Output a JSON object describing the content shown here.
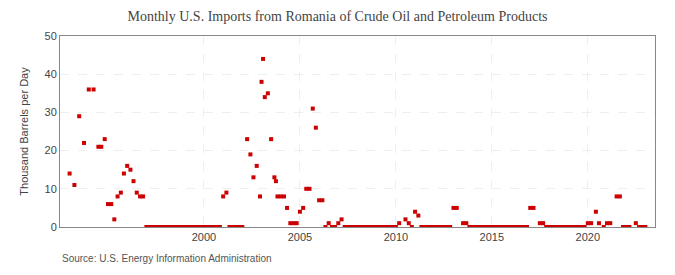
{
  "chart_data": {
    "type": "scatter",
    "title": "Monthly U.S. Imports from Romania of Crude Oil and Petroleum Products",
    "y_label": "Thousand Barrels per Day",
    "annotations": [
      "Source: U.S. Energy Information Administration"
    ],
    "color": "#cc0000",
    "marker": "square",
    "grid": true,
    "xlim": [
      1992.5,
      2023.5
    ],
    "xticks": [
      2000,
      2005,
      2010,
      2015,
      2020
    ],
    "ylim": [
      0,
      50
    ],
    "yticks": [
      0,
      10,
      20,
      30,
      40,
      50
    ],
    "x": [
      1993.0,
      1993.25,
      1993.5,
      1993.75,
      1994.0,
      1994.25,
      1994.5,
      1994.65,
      1994.83,
      1995.0,
      1995.17,
      1995.33,
      1995.5,
      1995.67,
      1995.83,
      1996.0,
      1996.17,
      1996.33,
      1996.5,
      1996.67,
      1996.83,
      1997.0,
      1997.17,
      1997.33,
      1997.5,
      1997.67,
      1997.83,
      1998.0,
      1998.17,
      1998.33,
      1998.5,
      1998.67,
      1998.83,
      1999.0,
      1999.17,
      1999.33,
      1999.5,
      1999.67,
      1999.83,
      2000.0,
      2000.17,
      2000.33,
      2000.5,
      2000.67,
      2000.83,
      2001.0,
      2001.17,
      2001.33,
      2001.5,
      2001.67,
      2001.83,
      2002.0,
      2002.25,
      2002.42,
      2002.58,
      2002.75,
      2002.92,
      2003.0,
      2003.08,
      2003.17,
      2003.33,
      2003.5,
      2003.67,
      2003.75,
      2003.83,
      2004.0,
      2004.17,
      2004.33,
      2004.5,
      2004.67,
      2004.83,
      2005.0,
      2005.17,
      2005.33,
      2005.5,
      2005.67,
      2005.83,
      2006.0,
      2006.17,
      2006.33,
      2006.5,
      2006.67,
      2006.83,
      2007.0,
      2007.17,
      2007.33,
      2007.5,
      2007.67,
      2007.83,
      2008.0,
      2008.17,
      2008.33,
      2008.5,
      2008.67,
      2008.83,
      2009.0,
      2009.17,
      2009.33,
      2009.5,
      2009.67,
      2009.83,
      2010.0,
      2010.17,
      2010.5,
      2010.67,
      2010.83,
      2011.0,
      2011.17,
      2011.33,
      2011.5,
      2011.67,
      2011.83,
      2012.0,
      2012.17,
      2012.33,
      2012.5,
      2012.67,
      2012.83,
      2013.0,
      2013.17,
      2013.5,
      2013.67,
      2013.83,
      2014.0,
      2014.17,
      2014.33,
      2014.5,
      2014.67,
      2014.83,
      2015.0,
      2015.17,
      2015.33,
      2015.5,
      2015.67,
      2015.83,
      2016.0,
      2016.17,
      2016.33,
      2016.5,
      2016.67,
      2016.83,
      2017.0,
      2017.17,
      2017.5,
      2017.67,
      2017.83,
      2018.0,
      2018.17,
      2018.33,
      2018.5,
      2018.67,
      2018.83,
      2019.0,
      2019.17,
      2019.33,
      2019.5,
      2019.67,
      2019.83,
      2020.0,
      2020.17,
      2020.42,
      2020.58,
      2020.83,
      2021.0,
      2021.17,
      2021.5,
      2021.67,
      2021.83,
      2022.0,
      2022.17,
      2022.5,
      2022.67,
      2022.83,
      2023.0
    ],
    "values": [
      14,
      11,
      29,
      22,
      36,
      36,
      21,
      21,
      23,
      6,
      6,
      2,
      8,
      9,
      14,
      16,
      15,
      12,
      9,
      8,
      8,
      0,
      0,
      0,
      0,
      0,
      0,
      0,
      0,
      0,
      0,
      0,
      0,
      0,
      0,
      0,
      0,
      0,
      0,
      0,
      0,
      0,
      0,
      0,
      0,
      8,
      9,
      0,
      0,
      0,
      0,
      0,
      23,
      19,
      13,
      16,
      8,
      38,
      44,
      34,
      35,
      23,
      13,
      12,
      8,
      8,
      8,
      5,
      1,
      1,
      1,
      4,
      5,
      10,
      10,
      31,
      26,
      7,
      7,
      0,
      1,
      0,
      0,
      1,
      2,
      0,
      0,
      0,
      0,
      0,
      0,
      0,
      0,
      0,
      0,
      0,
      0,
      0,
      0,
      0,
      0,
      0,
      1,
      2,
      1,
      0,
      4,
      3,
      0,
      0,
      0,
      0,
      0,
      0,
      0,
      0,
      0,
      0,
      5,
      5,
      1,
      1,
      0,
      0,
      0,
      0,
      0,
      0,
      0,
      0,
      0,
      0,
      0,
      0,
      0,
      0,
      0,
      0,
      0,
      0,
      0,
      5,
      5,
      1,
      1,
      0,
      0,
      0,
      0,
      0,
      0,
      0,
      0,
      0,
      0,
      0,
      0,
      0,
      1,
      1,
      4,
      1,
      0,
      1,
      1,
      8,
      8,
      0,
      0,
      0,
      1,
      0,
      0,
      0
    ]
  }
}
